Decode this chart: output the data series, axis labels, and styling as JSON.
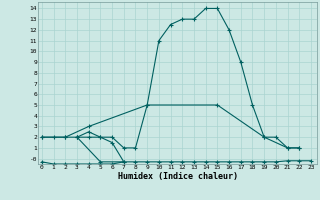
{
  "xlabel": "Humidex (Indice chaleur)",
  "bg_color": "#cce8e4",
  "grid_color": "#aad4d0",
  "line_color": "#006060",
  "xlim": [
    -0.3,
    23.5
  ],
  "ylim": [
    -0.5,
    14.6
  ],
  "xtick_labels": [
    "0",
    "1",
    "2",
    "3",
    "4",
    "5",
    "6",
    "7",
    "8",
    "9",
    "10",
    "11",
    "12",
    "13",
    "14",
    "15",
    "16",
    "17",
    "18",
    "19",
    "20",
    "21",
    "22",
    "23"
  ],
  "ytick_vals": [
    0,
    1,
    2,
    3,
    4,
    5,
    6,
    7,
    8,
    9,
    10,
    11,
    12,
    13,
    14
  ],
  "ytick_labels": [
    "-0",
    "1",
    "2",
    "3",
    "4",
    "5",
    "6",
    "7",
    "8",
    "9",
    "10",
    "11",
    "12",
    "13",
    "14"
  ],
  "series": [
    {
      "x": [
        0,
        1,
        2,
        3,
        4,
        5,
        6,
        7,
        8,
        9,
        10,
        11,
        12,
        13,
        14,
        15,
        16,
        17,
        18,
        19,
        20,
        21,
        22
      ],
      "y": [
        2,
        2,
        2,
        2,
        2,
        2,
        2,
        1,
        1,
        5,
        11,
        12.5,
        13,
        13,
        14,
        14,
        12,
        9,
        5,
        2,
        2,
        1,
        1
      ]
    },
    {
      "x": [
        0,
        2,
        4,
        9,
        15,
        19,
        21,
        22
      ],
      "y": [
        2,
        2,
        3,
        5,
        5,
        2,
        1,
        1
      ]
    },
    {
      "x": [
        3,
        4,
        5,
        6,
        7,
        5,
        3
      ],
      "y": [
        2,
        2.5,
        2,
        1.5,
        -0.3,
        -0.3,
        2
      ]
    },
    {
      "x": [
        0,
        1,
        2,
        3,
        4,
        5,
        6,
        7,
        8,
        9,
        10,
        11,
        12,
        13,
        14,
        15,
        16,
        17,
        18,
        19,
        20,
        21,
        22,
        23
      ],
      "y": [
        -0.3,
        -0.5,
        -0.5,
        -0.5,
        -0.5,
        -0.5,
        -0.5,
        -0.3,
        -0.3,
        -0.3,
        -0.3,
        -0.3,
        -0.3,
        -0.3,
        -0.3,
        -0.3,
        -0.3,
        -0.3,
        -0.3,
        -0.3,
        -0.3,
        -0.2,
        -0.2,
        -0.2
      ]
    }
  ]
}
